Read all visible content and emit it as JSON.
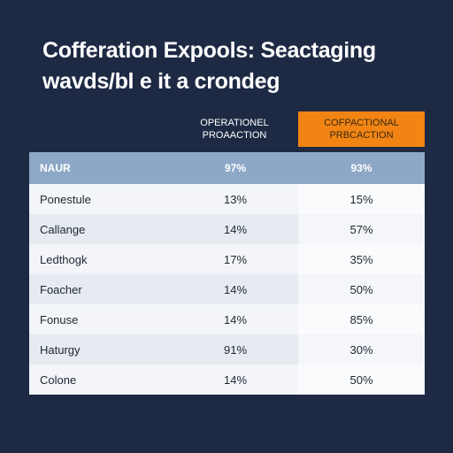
{
  "title": {
    "line1": "Cofferation Expools: Seactaging",
    "line2": "wavds/bl e it a crondeg"
  },
  "columns": {
    "col1_line1": "Operationel",
    "col1_line2": "proaaction",
    "col2_line1": "Cofpactional",
    "col2_line2": "prbcaction"
  },
  "table": {
    "header": {
      "label": "NAUR",
      "v1": "97%",
      "v2": "93%"
    },
    "rows": [
      {
        "label": "Ponestule",
        "v1": "13%",
        "v2": "15%"
      },
      {
        "label": "Callange",
        "v1": "14%",
        "v2": "57%"
      },
      {
        "label": "Ledthogk",
        "v1": "17%",
        "v2": "35%"
      },
      {
        "label": "Foacher",
        "v1": "14%",
        "v2": "50%"
      },
      {
        "label": "Fonuse",
        "v1": "14%",
        "v2": "85%"
      },
      {
        "label": "Haturgy",
        "v1": "91%",
        "v2": "30%"
      },
      {
        "label": "Colone",
        "v1": "14%",
        "v2": "50%"
      }
    ]
  },
  "colors": {
    "background": "#1e2a44",
    "accent": "#f28413",
    "header_row": "#8da8c6"
  }
}
